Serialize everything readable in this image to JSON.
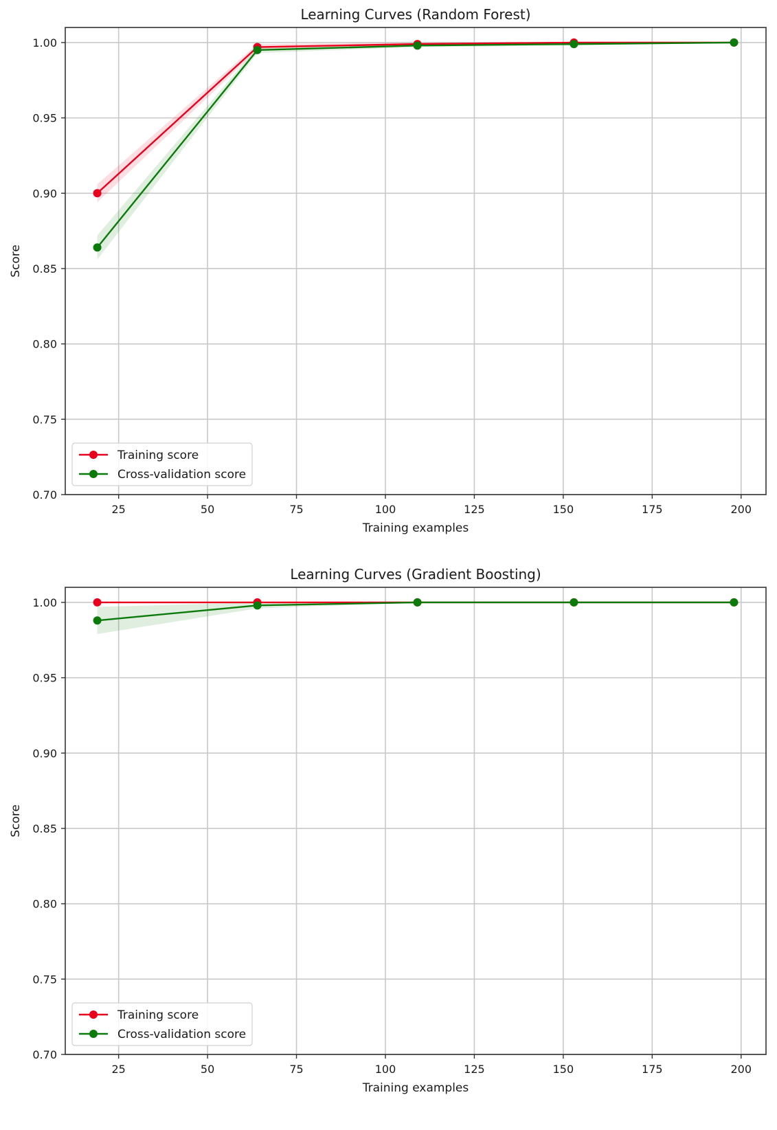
{
  "chart_data": [
    {
      "type": "line",
      "title": "Learning Curves (Random Forest)",
      "xlabel": "Training examples",
      "ylabel": "Score",
      "xlim": [
        10,
        207
      ],
      "ylim": [
        0.7,
        1.01
      ],
      "xticks": [
        25,
        50,
        75,
        100,
        125,
        150,
        175,
        200
      ],
      "yticks": [
        0.7,
        0.75,
        0.8,
        0.85,
        0.9,
        0.95,
        1.0
      ],
      "xtick_labels": [
        "25",
        "50",
        "75",
        "100",
        "125",
        "150",
        "175",
        "200"
      ],
      "ytick_labels": [
        "0.70",
        "0.75",
        "0.80",
        "0.85",
        "0.90",
        "0.95",
        "1.00"
      ],
      "grid": true,
      "legend_position": "lower-left",
      "x": [
        19,
        64,
        109,
        153,
        198
      ],
      "series": [
        {
          "name": "Training score",
          "color": "#e8001c",
          "values": [
            0.9,
            0.997,
            0.999,
            1.0,
            1.0
          ],
          "std": [
            0.006,
            0.002,
            0.001,
            0.0,
            0.0
          ]
        },
        {
          "name": "Cross-validation score",
          "color": "#0b7a0b",
          "values": [
            0.864,
            0.995,
            0.998,
            0.999,
            1.0
          ],
          "std": [
            0.008,
            0.002,
            0.001,
            0.001,
            0.0
          ]
        }
      ]
    },
    {
      "type": "line",
      "title": "Learning Curves (Gradient Boosting)",
      "xlabel": "Training examples",
      "ylabel": "Score",
      "xlim": [
        10,
        207
      ],
      "ylim": [
        0.7,
        1.01
      ],
      "xticks": [
        25,
        50,
        75,
        100,
        125,
        150,
        175,
        200
      ],
      "yticks": [
        0.7,
        0.75,
        0.8,
        0.85,
        0.9,
        0.95,
        1.0
      ],
      "xtick_labels": [
        "25",
        "50",
        "75",
        "100",
        "125",
        "150",
        "175",
        "200"
      ],
      "ytick_labels": [
        "0.70",
        "0.75",
        "0.80",
        "0.85",
        "0.90",
        "0.95",
        "1.00"
      ],
      "grid": true,
      "legend_position": "lower-left",
      "x": [
        19,
        64,
        109,
        153,
        198
      ],
      "series": [
        {
          "name": "Training score",
          "color": "#e8001c",
          "values": [
            1.0,
            1.0,
            1.0,
            1.0,
            1.0
          ],
          "std": [
            0.0,
            0.0,
            0.0,
            0.0,
            0.0
          ]
        },
        {
          "name": "Cross-validation score",
          "color": "#0b7a0b",
          "values": [
            0.988,
            0.998,
            1.0,
            1.0,
            1.0
          ],
          "std": [
            0.009,
            0.002,
            0.0,
            0.0,
            0.0
          ]
        }
      ]
    }
  ]
}
